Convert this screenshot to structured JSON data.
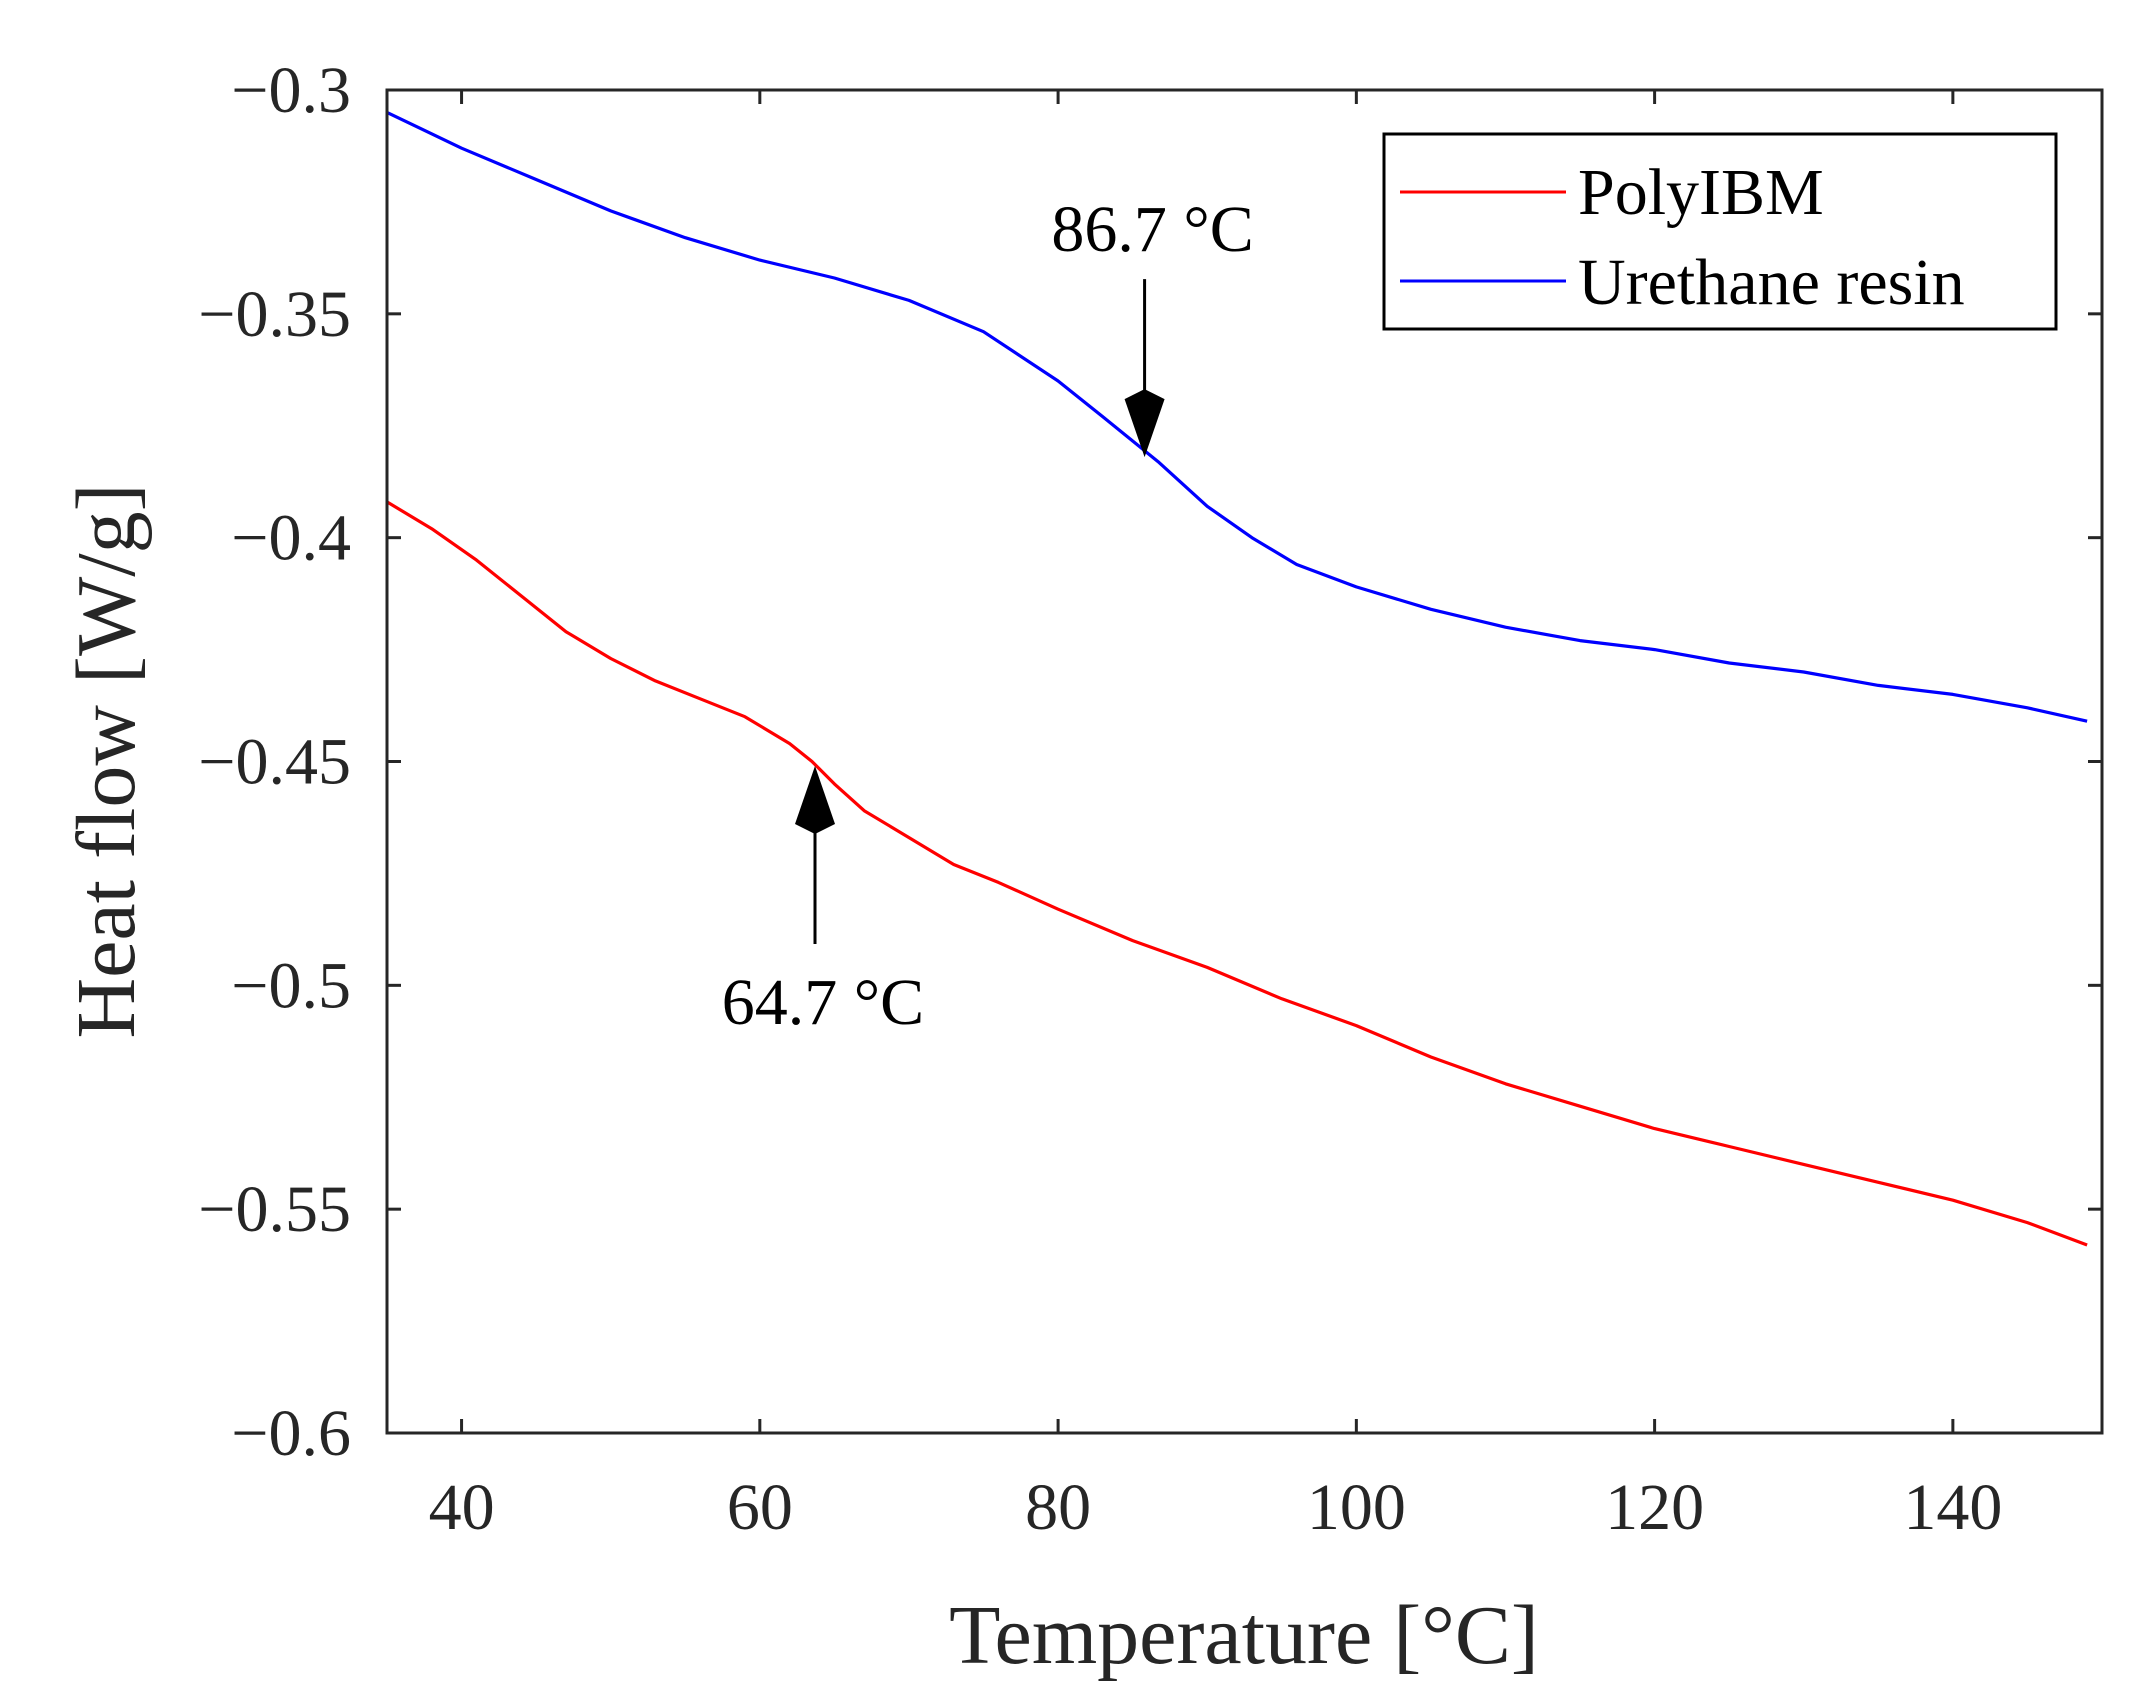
{
  "chart_data": {
    "type": "line",
    "title": "",
    "xlabel": "Temperature [°C]",
    "ylabel": "Heat flow [W/g]",
    "xlim": [
      35,
      150
    ],
    "ylim": [
      -0.6,
      -0.3
    ],
    "grid": false,
    "legend_position": "top-right",
    "x_ticks": [
      40,
      60,
      80,
      100,
      120,
      140
    ],
    "x_tick_labels": [
      "40",
      "60",
      "80",
      "100",
      "120",
      "140"
    ],
    "y_ticks": [
      -0.6,
      -0.55,
      -0.5,
      -0.45,
      -0.4,
      -0.35,
      -0.3
    ],
    "y_tick_labels": [
      "−0.6",
      "−0.55",
      "−0.5",
      "−0.45",
      "−0.4",
      "−0.35",
      "−0.3"
    ],
    "series": [
      {
        "name": "PolyIBM",
        "color": "#ff0000",
        "x": [
          35,
          38,
          41,
          44,
          47,
          50,
          53,
          56,
          59,
          62,
          63.5,
          65,
          67,
          70,
          73,
          76,
          80,
          85,
          90,
          95,
          100,
          105,
          110,
          115,
          120,
          125,
          130,
          135,
          140,
          145,
          149
        ],
        "y": [
          -0.392,
          -0.398,
          -0.405,
          -0.413,
          -0.421,
          -0.427,
          -0.432,
          -0.436,
          -0.44,
          -0.446,
          -0.45,
          -0.455,
          -0.461,
          -0.467,
          -0.473,
          -0.477,
          -0.483,
          -0.49,
          -0.496,
          -0.503,
          -0.509,
          -0.516,
          -0.522,
          -0.527,
          -0.532,
          -0.536,
          -0.54,
          -0.544,
          -0.548,
          -0.553,
          -0.558
        ]
      },
      {
        "name": "Urethane resin",
        "color": "#0000ff",
        "x": [
          35,
          40,
          45,
          50,
          55,
          60,
          65,
          70,
          75,
          80,
          83,
          86.7,
          90,
          93,
          96,
          100,
          105,
          110,
          115,
          120,
          125,
          130,
          135,
          140,
          145,
          149
        ],
        "y": [
          -0.305,
          -0.313,
          -0.32,
          -0.327,
          -0.333,
          -0.338,
          -0.342,
          -0.347,
          -0.354,
          -0.365,
          -0.373,
          -0.383,
          -0.393,
          -0.4,
          -0.406,
          -0.411,
          -0.416,
          -0.42,
          -0.423,
          -0.425,
          -0.428,
          -0.43,
          -0.433,
          -0.435,
          -0.438,
          -0.441
        ]
      }
    ],
    "annotations": [
      {
        "text": "86.7 °C",
        "x": 85.8,
        "y": -0.382,
        "arrow": "down"
      },
      {
        "text": "64.7 °C",
        "x": 63.7,
        "y": -0.451,
        "arrow": "up"
      }
    ]
  }
}
